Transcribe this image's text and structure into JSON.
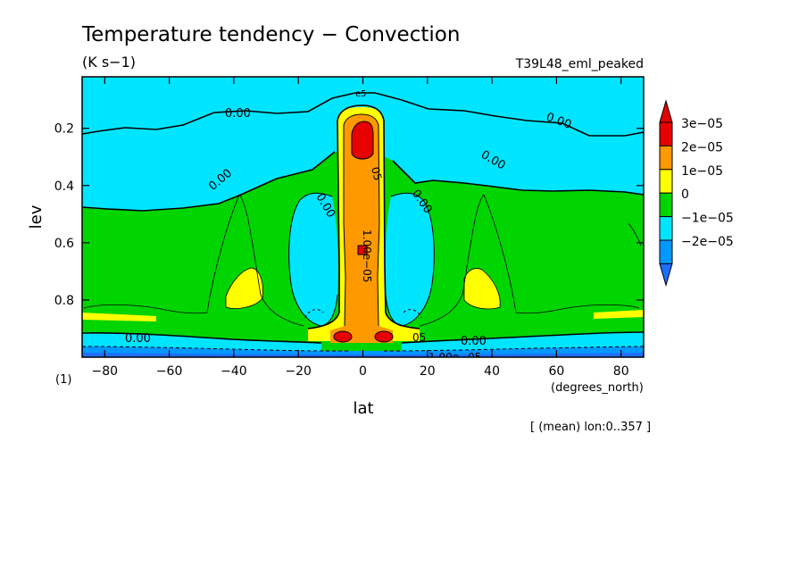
{
  "chart_data": {
    "type": "heatmap",
    "title": "Temperature tendency − Convection",
    "units": "(K s−1)",
    "experiment": "T39L48_eml_peaked",
    "xlabel": "lat",
    "x_units": "(degrees_north)",
    "ylabel": "lev",
    "y_units": "(1)",
    "xlim": [
      -87,
      87
    ],
    "ylim": [
      1.0,
      0.02
    ],
    "x_ticks": [
      -80,
      -60,
      -40,
      -20,
      0,
      20,
      40,
      60,
      80
    ],
    "y_ticks": [
      0.2,
      0.4,
      0.6,
      0.8
    ],
    "x_tick_labels": [
      "−80",
      "−60",
      "−40",
      "−20",
      "0",
      "20",
      "40",
      "60",
      "80"
    ],
    "y_tick_labels": [
      "0.2",
      "0.4",
      "0.6",
      "0.8"
    ],
    "footnote": "[ (mean) lon:0..357 ]",
    "contour_labels": {
      "zero": "0.00",
      "positive": "1.00e−05",
      "positive_short": "05",
      "top_short": "e5"
    },
    "legend": {
      "placement": "right",
      "levels": [
        {
          "label": "3e−05",
          "color": "#e60000"
        },
        {
          "label": "2e−05",
          "color": "#ff9900"
        },
        {
          "label": "1e−05",
          "color": "#ffff00"
        },
        {
          "label": "0",
          "color": "#00d500"
        },
        {
          "label": "−1e−05",
          "color": "#00e5ff"
        },
        {
          "label": "−2e−05",
          "color": "#0099ff"
        }
      ],
      "top_color": "#e60000",
      "bottom_color": "#1f6fff"
    },
    "colors": {
      "above_3e-05": "#e60000",
      "2e-05_to_3e-05": "#ff9900",
      "1e-05_to_2e-05": "#ffff00",
      "0_to_1e-05": "#00d500",
      "-1e-05_to_0": "#00e5ff",
      "-2e-05_to_-1e-05": "#0099ff",
      "below_-2e-05": "#1f6fff"
    }
  }
}
